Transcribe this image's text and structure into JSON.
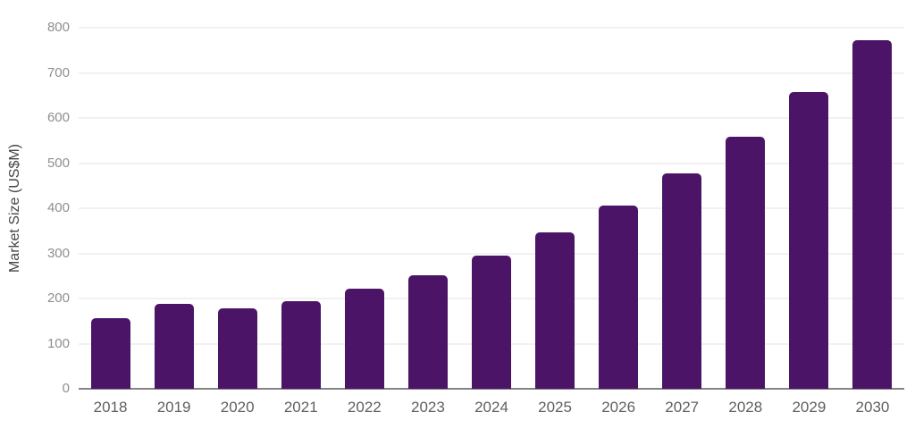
{
  "page": {
    "background_color": "#ffffff"
  },
  "chart_data": {
    "type": "bar",
    "title": "",
    "xlabel": "",
    "ylabel": "Market Size (US$M)",
    "categories": [
      "2018",
      "2019",
      "2020",
      "2021",
      "2022",
      "2023",
      "2024",
      "2025",
      "2026",
      "2027",
      "2028",
      "2029",
      "2030"
    ],
    "values": [
      157,
      188,
      179,
      194,
      222,
      252,
      296,
      346,
      406,
      477,
      559,
      658,
      772
    ],
    "ylim": [
      0,
      800
    ],
    "yticks": [
      0,
      100,
      200,
      300,
      400,
      500,
      600,
      700,
      800
    ],
    "grid": true,
    "legend": "none",
    "bar_color": "#4B1467",
    "gridline_color": "#f1f1f1",
    "axis_line_color": "#848484",
    "ytick_label_color": "#8e8e8e",
    "xtick_label_color": "#5f5f5f",
    "ylabel_color": "#454545"
  }
}
